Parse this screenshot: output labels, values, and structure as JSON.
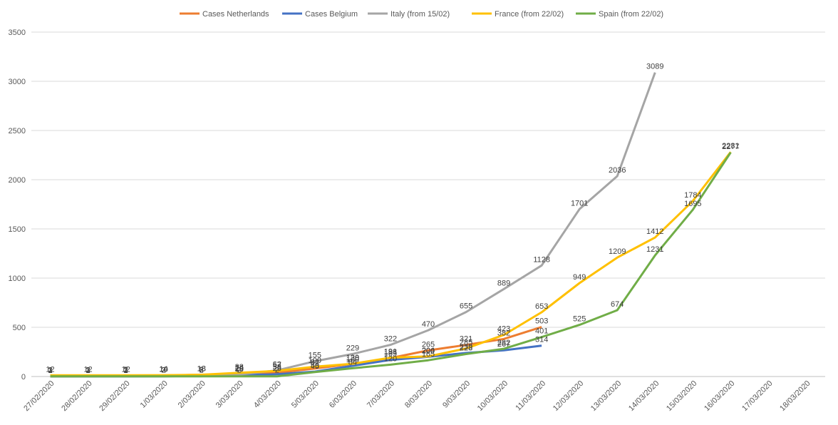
{
  "chart_data": {
    "type": "line",
    "title": "",
    "xlabel": "",
    "ylabel": "",
    "categories": [
      "27/02/2020",
      "28/02/2020",
      "29/02/2020",
      "1/03/2020",
      "2/03/2020",
      "3/03/2020",
      "4/03/2020",
      "5/03/2020",
      "6/03/2020",
      "7/03/2020",
      "8/03/2020",
      "9/03/2020",
      "10/03/2020",
      "11/03/2020",
      "12/03/2020",
      "13/03/2020",
      "14/03/2020",
      "15/03/2020",
      "16/03/2020",
      "17/03/2020",
      "18/03/2020"
    ],
    "ylim": [
      0,
      3500
    ],
    "yticks": [
      "0",
      "500",
      "1000",
      "1500",
      "2000",
      "2500",
      "3000",
      "3500"
    ],
    "grid": true,
    "legend_position": "top",
    "series": [
      {
        "name": "Cases Netherlands",
        "color": "#ED7D31",
        "values": [
          1,
          2,
          7,
          10,
          18,
          24,
          38,
          82,
          128,
          188,
          265,
          321,
          382,
          503,
          null,
          null,
          null,
          null,
          null,
          null,
          null
        ]
      },
      {
        "name": "Cases Belgium",
        "color": "#4472C4",
        "values": [
          1,
          1,
          1,
          2,
          8,
          13,
          23,
          50,
          109,
          169,
          200,
          239,
          267,
          314,
          null,
          null,
          null,
          null,
          null,
          null,
          null
        ]
      },
      {
        "name": "Italy (from 15/02)",
        "color": "#A5A5A5",
        "values": [
          3,
          3,
          3,
          3,
          3,
          20,
          62,
          155,
          229,
          322,
          470,
          655,
          889,
          1128,
          1701,
          2036,
          3089,
          null,
          null,
          null,
          null
        ]
      },
      {
        "name": "France (from 22/02)",
        "color": "#FFC000",
        "values": [
          12,
          12,
          12,
          14,
          18,
          38,
          57,
          100,
          130,
          191,
          204,
          285,
          423,
          653,
          949,
          1209,
          1412,
          1784,
          2281,
          null,
          null
        ]
      },
      {
        "name": "Spain (from 22/02)",
        "color": "#70AD47",
        "values": [
          2,
          2,
          2,
          2,
          2,
          2,
          2,
          45,
          84,
          120,
          165,
          228,
          282,
          401,
          525,
          674,
          1231,
          1695,
          2277,
          null,
          null
        ]
      }
    ]
  }
}
